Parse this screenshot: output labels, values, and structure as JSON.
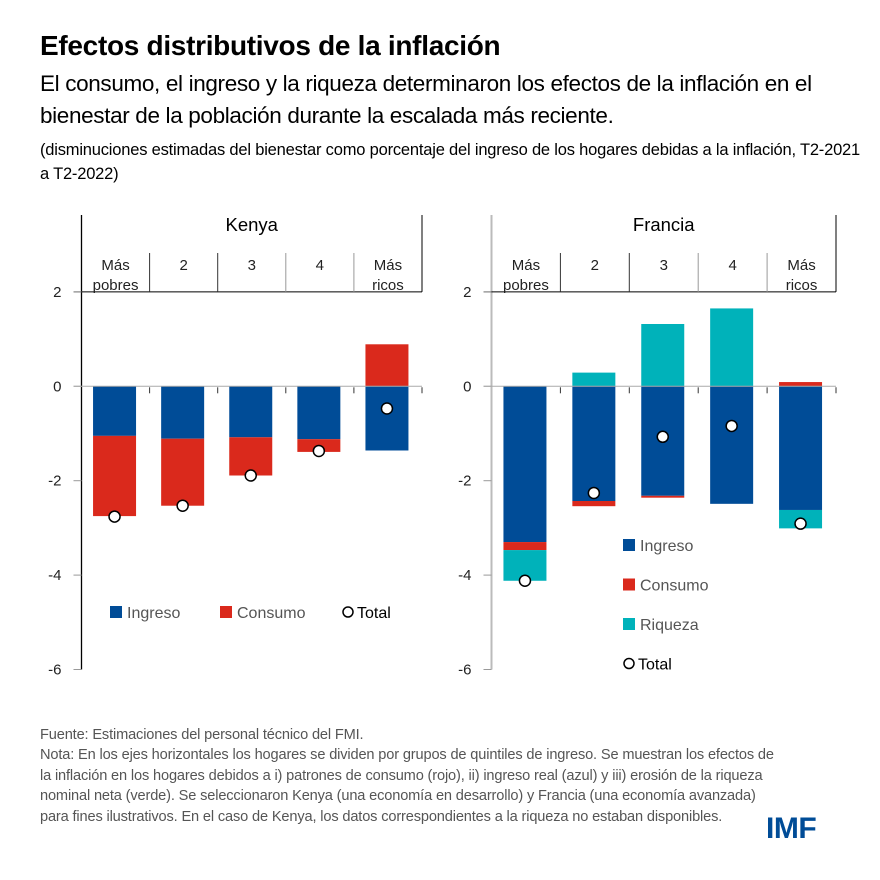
{
  "header": {
    "title": "Efectos distributivos de la inflación",
    "subtitle": "El consumo, el ingreso y la riqueza determinaron los efectos de la inflación en el bienestar de la población durante la escalada más reciente.",
    "units": "(disminuciones estimadas del bienestar como porcentaje del ingreso de los hogares debidas a la inflación, T2-2021 a T2-2022)"
  },
  "colors": {
    "ingreso": "#004C97",
    "consumo": "#DA291C",
    "riqueza": "#00B2BA",
    "total_fill": "#FFFFFF",
    "total_stroke": "#000000",
    "logo": "#004C97"
  },
  "chart_data": [
    {
      "type": "bar",
      "stacked": true,
      "title": "Kenya",
      "categories": [
        [
          "Más",
          "pobres"
        ],
        [
          "2"
        ],
        [
          "3"
        ],
        [
          "4"
        ],
        [
          "Más",
          "ricos"
        ]
      ],
      "ylim": [
        -6,
        2
      ],
      "yticks": [
        2,
        0,
        -2,
        -4,
        -6
      ],
      "xlabel": "",
      "ylabel": "",
      "grid": false,
      "legend": {
        "position": "bottom-center",
        "layout": "horizontal",
        "entries": [
          "Ingreso",
          "Consumo",
          "Total"
        ]
      },
      "series": [
        {
          "name": "Ingreso",
          "key": "ingreso",
          "values": [
            -1.05,
            -1.11,
            -1.08,
            -1.12,
            -1.36
          ]
        },
        {
          "name": "Consumo",
          "key": "consumo",
          "values": [
            -1.7,
            -1.42,
            -0.81,
            -0.27,
            0.89
          ]
        }
      ],
      "total": {
        "name": "Total",
        "values": [
          -2.76,
          -2.53,
          -1.89,
          -1.37,
          -0.47
        ]
      }
    },
    {
      "type": "bar",
      "stacked": true,
      "title": "Francia",
      "categories": [
        [
          "Más",
          "pobres"
        ],
        [
          "2"
        ],
        [
          "3"
        ],
        [
          "4"
        ],
        [
          "Más",
          "ricos"
        ]
      ],
      "ylim": [
        -6,
        2
      ],
      "yticks": [
        2,
        0,
        -2,
        -4,
        -6
      ],
      "xlabel": "",
      "ylabel": "",
      "grid": false,
      "legend": {
        "position": "bottom-center",
        "layout": "vertical",
        "entries": [
          "Ingreso",
          "Consumo",
          "Riqueza",
          "Total"
        ]
      },
      "series": [
        {
          "name": "Ingreso",
          "key": "ingreso",
          "values": [
            -3.3,
            -2.43,
            -2.32,
            -2.49,
            -2.62
          ]
        },
        {
          "name": "Consumo",
          "key": "consumo",
          "values": [
            -0.17,
            -0.11,
            -0.04,
            0.0,
            0.09
          ]
        },
        {
          "name": "Riqueza",
          "key": "riqueza",
          "values": [
            -0.65,
            0.29,
            1.32,
            1.65,
            -0.39
          ]
        }
      ],
      "total": {
        "name": "Total",
        "values": [
          -4.12,
          -2.26,
          -1.07,
          -0.84,
          -2.91
        ]
      }
    }
  ],
  "footer": {
    "source": "Fuente: Estimaciones del personal técnico del FMI.",
    "note": "Nota: En los ejes horizontales los hogares se dividen por grupos de quintiles de ingreso. Se muestran los efectos de la inflación en los hogares debidos a i) patrones de consumo (rojo), ii) ingreso real (azul) y iii) erosión de la riqueza nominal neta (verde). Se seleccionaron Kenya (una economía en desarrollo) y Francia (una economía avanzada) para fines ilustrativos. En el caso de Kenya, los datos correspondientes a la riqueza no estaban disponibles."
  },
  "logo": {
    "text": "IMF"
  }
}
